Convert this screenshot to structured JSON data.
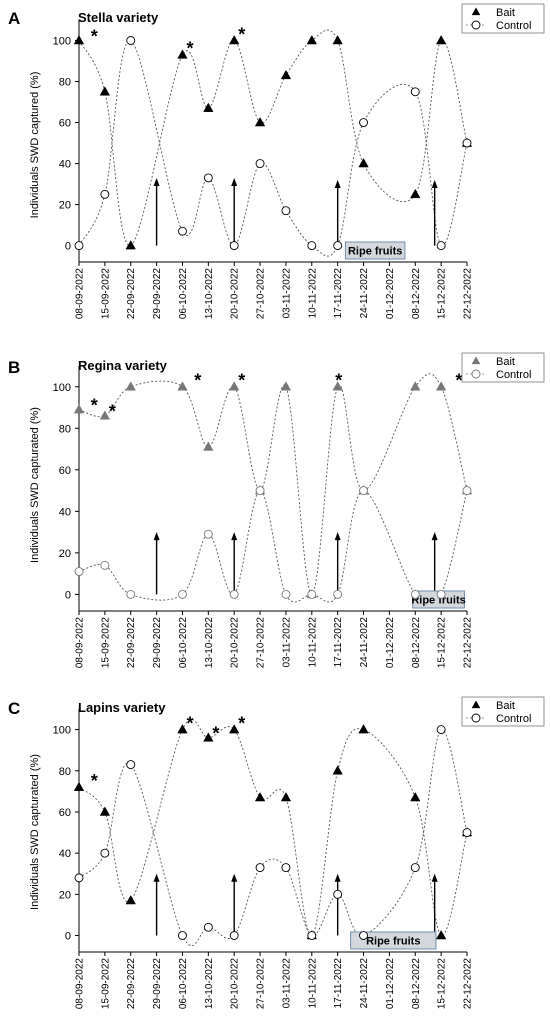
{
  "figure": {
    "ylabels": {
      "A": "Individuals SWD captured (%)",
      "B": "Individuals SWD capturated (%)",
      "C": "Individuals SWD capturated (%)"
    },
    "ripe_label": "Ripe fruits",
    "star_symbol": "*"
  },
  "chart_data": [
    {
      "id": "A",
      "letter": "A",
      "type": "line",
      "title": "Stella variety",
      "categories": [
        "08-09-2022",
        "15-09-2022",
        "22-09-2022",
        "29-09-2022",
        "06-10-2022",
        "13-10-2022",
        "20-10-2022",
        "27-10-2022",
        "03-11-2022",
        "10-11-2022",
        "17-11-2022",
        "24-11-2022",
        "01-12-2022",
        "08-12-2022",
        "15-12-2022",
        "22-12-2022"
      ],
      "ylim": [
        -8,
        110
      ],
      "yticks": [
        0,
        20,
        40,
        60,
        80,
        100
      ],
      "series": [
        {
          "name": "Bait",
          "marker": "triangle",
          "color": "#000000",
          "points": [
            [
              0,
              100
            ],
            [
              1,
              75
            ],
            [
              2,
              0
            ],
            [
              4,
              93
            ],
            [
              5,
              67
            ],
            [
              6,
              100
            ],
            [
              7,
              60
            ],
            [
              8,
              83
            ],
            [
              9,
              100
            ],
            [
              10,
              100
            ],
            [
              11,
              40
            ],
            [
              13,
              25
            ],
            [
              14,
              100
            ],
            [
              15,
              50
            ]
          ]
        },
        {
          "name": "Control",
          "marker": "circle",
          "color": "#000000",
          "points": [
            [
              0,
              0
            ],
            [
              1,
              25
            ],
            [
              2,
              100
            ],
            [
              4,
              7
            ],
            [
              5,
              33
            ],
            [
              6,
              0
            ],
            [
              7,
              40
            ],
            [
              8,
              17
            ],
            [
              9,
              0
            ],
            [
              10,
              0
            ],
            [
              11,
              60
            ],
            [
              13,
              75
            ],
            [
              14,
              0
            ],
            [
              15,
              50
            ]
          ]
        }
      ],
      "significance_stars": [
        [
          0.3,
          103
        ],
        [
          4,
          97
        ],
        [
          6,
          104
        ]
      ],
      "arrows": [
        [
          3,
          32
        ],
        [
          6,
          32
        ],
        [
          10,
          31
        ],
        [
          13.75,
          31
        ]
      ],
      "ripe_fruits": {
        "from": 10.3,
        "to": 12.6
      }
    },
    {
      "id": "B",
      "letter": "B",
      "type": "line",
      "title": "Regina variety",
      "categories": [
        "08-09-2022",
        "15-09-2022",
        "22-09-2022",
        "29-09-2022",
        "06-10-2022",
        "13-10-2022",
        "20-10-2022",
        "27-10-2022",
        "03-11-2022",
        "10-11-2022",
        "17-11-2022",
        "24-11-2022",
        "01-12-2022",
        "08-12-2022",
        "15-12-2022",
        "22-12-2022"
      ],
      "ylim": [
        -8,
        110
      ],
      "yticks": [
        0,
        20,
        40,
        60,
        80,
        100
      ],
      "series": [
        {
          "name": "Bait",
          "marker": "triangle",
          "color": "#777777",
          "points": [
            [
              0,
              89
            ],
            [
              1,
              86
            ],
            [
              2,
              100
            ],
            [
              4,
              100
            ],
            [
              5,
              71
            ],
            [
              6,
              100
            ],
            [
              7,
              50
            ],
            [
              8,
              100
            ],
            [
              9,
              0
            ],
            [
              10,
              100
            ],
            [
              11,
              50
            ],
            [
              13,
              100
            ],
            [
              14,
              100
            ],
            [
              15,
              50
            ]
          ]
        },
        {
          "name": "Control",
          "marker": "circle",
          "color": "#777777",
          "points": [
            [
              0,
              11
            ],
            [
              1,
              14
            ],
            [
              2,
              0
            ],
            [
              4,
              0
            ],
            [
              5,
              29
            ],
            [
              6,
              0
            ],
            [
              7,
              50
            ],
            [
              8,
              0
            ],
            [
              9,
              0
            ],
            [
              10,
              0
            ],
            [
              11,
              50
            ],
            [
              13,
              0
            ],
            [
              14,
              0
            ],
            [
              15,
              50
            ]
          ]
        }
      ],
      "significance_stars": [
        [
          0.3,
          92
        ],
        [
          1,
          89
        ],
        [
          4.3,
          104
        ],
        [
          6,
          104
        ],
        [
          9.75,
          104
        ],
        [
          14.4,
          104
        ]
      ],
      "arrows": [
        [
          3,
          29
        ],
        [
          6,
          29
        ],
        [
          10,
          29
        ],
        [
          13.75,
          29
        ]
      ],
      "ripe_fruits": {
        "from": 12.9,
        "to": 14.9
      }
    },
    {
      "id": "C",
      "letter": "C",
      "type": "line",
      "title": "Lapins variety",
      "categories": [
        "08-09-2022",
        "15-09-2022",
        "22-09-2022",
        "29-09-2022",
        "06-10-2022",
        "13-10-2022",
        "20-10-2022",
        "27-10-2022",
        "03-11-2022",
        "10-11-2022",
        "17-11-2022",
        "24-11-2022",
        "01-12-2022",
        "08-12-2022",
        "15-12-2022",
        "22-12-2022"
      ],
      "ylim": [
        -8,
        110
      ],
      "yticks": [
        0,
        20,
        40,
        60,
        80,
        100
      ],
      "series": [
        {
          "name": "Bait",
          "marker": "triangle",
          "color": "#000000",
          "points": [
            [
              0,
              72
            ],
            [
              1,
              60
            ],
            [
              2,
              17
            ],
            [
              4,
              100
            ],
            [
              5,
              96
            ],
            [
              6,
              100
            ],
            [
              7,
              67
            ],
            [
              8,
              67
            ],
            [
              9,
              0
            ],
            [
              10,
              80
            ],
            [
              11,
              100
            ],
            [
              13,
              67
            ],
            [
              14,
              0
            ],
            [
              15,
              50
            ]
          ]
        },
        {
          "name": "Control",
          "marker": "circle",
          "color": "#000000",
          "points": [
            [
              0,
              28
            ],
            [
              1,
              40
            ],
            [
              2,
              83
            ],
            [
              4,
              0
            ],
            [
              5,
              4
            ],
            [
              6,
              0
            ],
            [
              7,
              33
            ],
            [
              8,
              33
            ],
            [
              9,
              0
            ],
            [
              10,
              20
            ],
            [
              11,
              0
            ],
            [
              13,
              33
            ],
            [
              14,
              100
            ],
            [
              15,
              50
            ]
          ]
        }
      ],
      "significance_stars": [
        [
          0.3,
          76
        ],
        [
          4,
          104
        ],
        [
          5,
          99
        ],
        [
          6,
          104
        ]
      ],
      "arrows": [
        [
          3,
          29
        ],
        [
          6,
          29
        ],
        [
          10,
          29
        ],
        [
          13.75,
          29
        ]
      ],
      "ripe_fruits": {
        "from": 10.5,
        "to": 13.8
      }
    }
  ]
}
